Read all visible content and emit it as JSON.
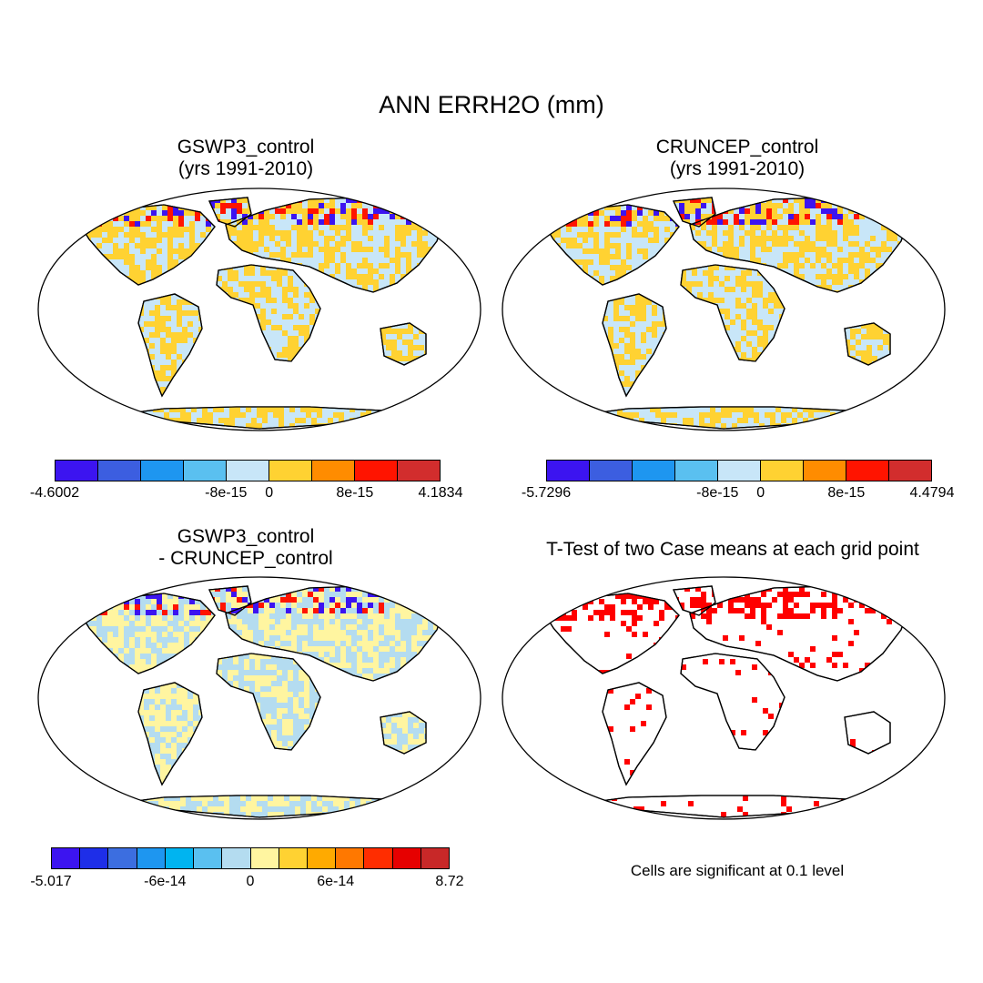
{
  "title": "ANN ERRH2O (mm)",
  "panels": [
    {
      "title": "GSWP3_control\n(yrs 1991-2010)",
      "colorbar": {
        "colors": [
          "#3c14f0",
          "#3c5ee0",
          "#1e96f0",
          "#5ac0f0",
          "#c8e6f8",
          "#ffd232",
          "#ff8c00",
          "#ff1400",
          "#d22d2d"
        ],
        "labels": [
          "-4.6002",
          "-8e-15",
          "0",
          "8e-15",
          "4.1834"
        ]
      },
      "mix": [
        "#c8e6f8",
        "#ffd232"
      ]
    },
    {
      "title": "CRUNCEP_control\n(yrs 1991-2010)",
      "colorbar": {
        "colors": [
          "#3c14f0",
          "#3c5ee0",
          "#1e96f0",
          "#5ac0f0",
          "#c8e6f8",
          "#ffd232",
          "#ff8c00",
          "#ff1400",
          "#d22d2d"
        ],
        "labels": [
          "-5.7296",
          "-8e-15",
          "0",
          "8e-15",
          "4.4794"
        ]
      },
      "mix": [
        "#c8e6f8",
        "#ffd232"
      ]
    },
    {
      "title": "GSWP3_control\n- CRUNCEP_control",
      "colorbar": {
        "colors": [
          "#3c14f0",
          "#1e2ee8",
          "#3c6ee0",
          "#1e96f0",
          "#00b4f0",
          "#5ac0f0",
          "#b4dcf0",
          "#fff5a0",
          "#ffd232",
          "#ffaa00",
          "#ff7800",
          "#ff2d00",
          "#e60000",
          "#c82828"
        ],
        "labels": [
          "-5.017",
          "-6e-14",
          "0",
          "6e-14",
          "8.72"
        ]
      },
      "mix": [
        "#b4dcf0",
        "#fff5a0"
      ]
    },
    {
      "title": "T-Test of two Case means at each grid point",
      "note": "Cells are significant at 0.1 level",
      "mix": [
        "#ff0000"
      ]
    }
  ]
}
